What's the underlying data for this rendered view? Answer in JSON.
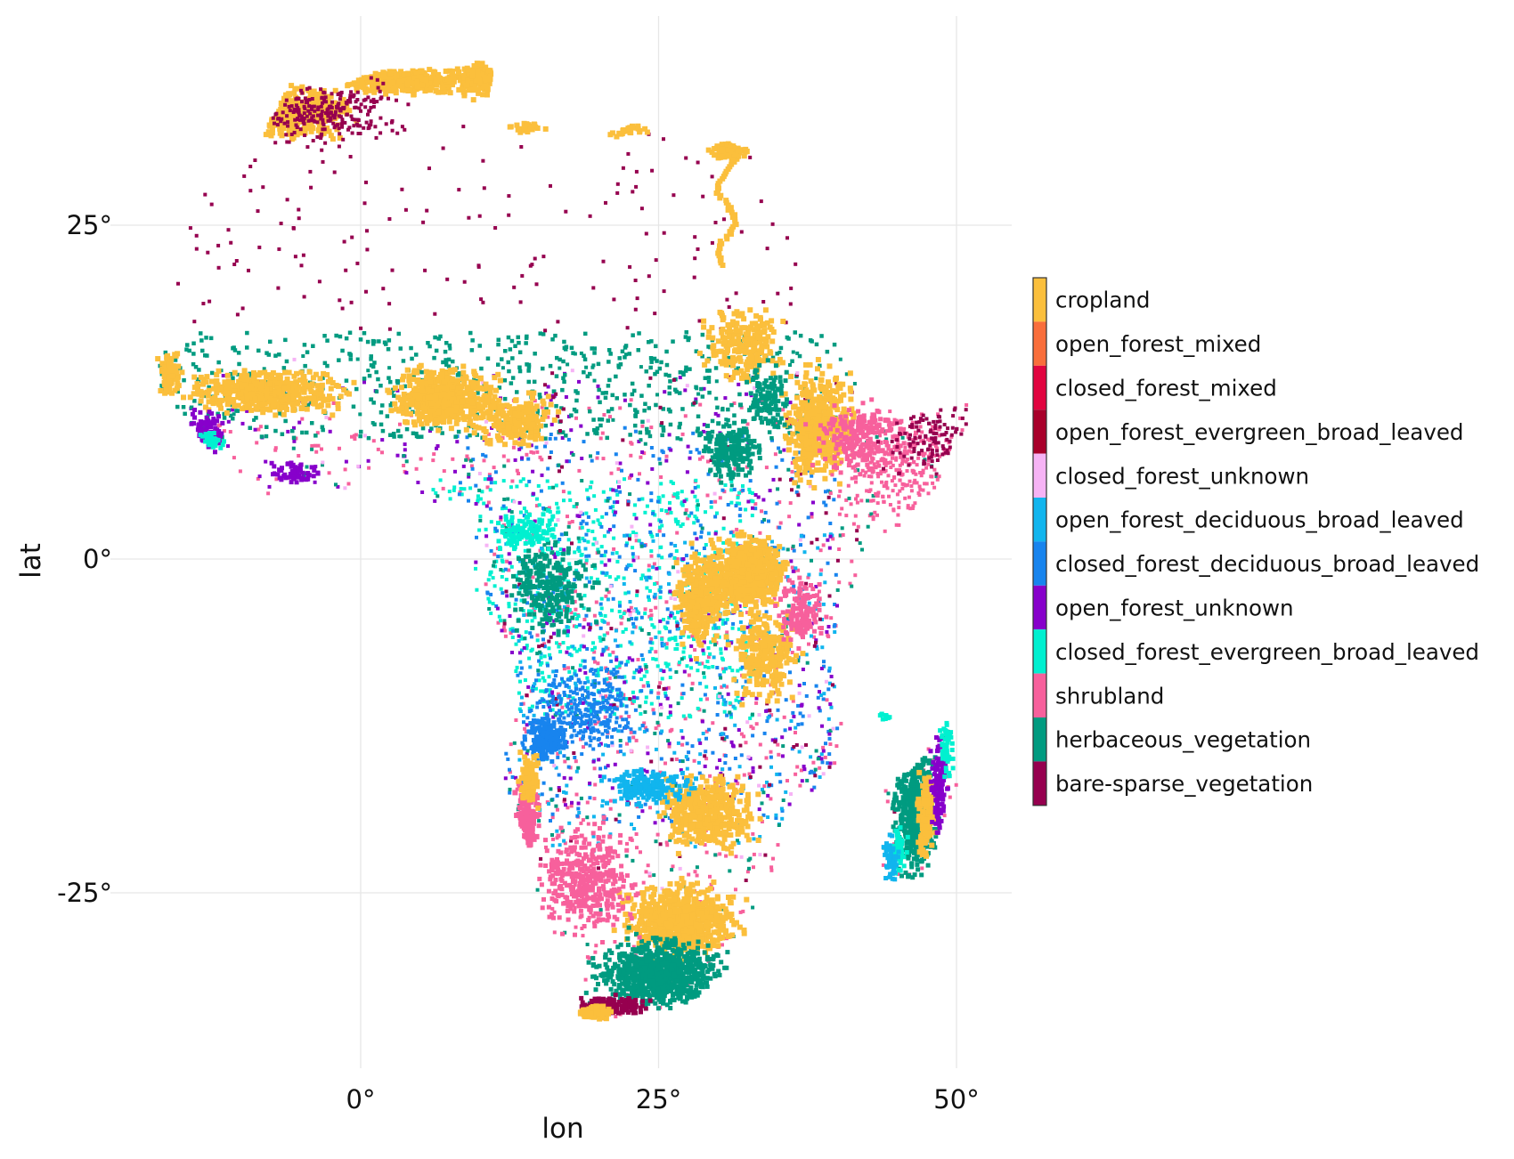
{
  "map": {
    "xlabel": "lon",
    "ylabel": "lat",
    "x_ticks": [
      {
        "value": 0,
        "label": "0°"
      },
      {
        "value": 25,
        "label": "25°"
      },
      {
        "value": 50,
        "label": "50°"
      }
    ],
    "y_ticks": [
      {
        "value": 25,
        "label": "25°"
      },
      {
        "value": 0,
        "label": "0°"
      },
      {
        "value": -25,
        "label": "-25°"
      }
    ],
    "xlim": [
      -17.5,
      54.5
    ],
    "ylim": [
      -38.5,
      41.5
    ],
    "grid": true,
    "legend_position": "right",
    "categories": [
      {
        "name": "cropland",
        "color": "#fbbf3c"
      },
      {
        "name": "open_forest_mixed",
        "color": "#f96e3b"
      },
      {
        "name": "closed_forest_mixed",
        "color": "#e1043f"
      },
      {
        "name": "open_forest_evergreen_broad_leaved",
        "color": "#a8002a"
      },
      {
        "name": "closed_forest_unknown",
        "color": "#f6b3f5"
      },
      {
        "name": "open_forest_deciduous_broad_leaved",
        "color": "#11b5ee"
      },
      {
        "name": "closed_forest_deciduous_broad_leaved",
        "color": "#1884ee"
      },
      {
        "name": "open_forest_unknown",
        "color": "#8700cb"
      },
      {
        "name": "closed_forest_evergreen_broad_leaved",
        "color": "#00f0d0"
      },
      {
        "name": "shrubland",
        "color": "#f7609c"
      },
      {
        "name": "herbaceous_vegetation",
        "color": "#009b80"
      },
      {
        "name": "bare-sparse_vegetation",
        "color": "#96004f"
      }
    ]
  }
}
